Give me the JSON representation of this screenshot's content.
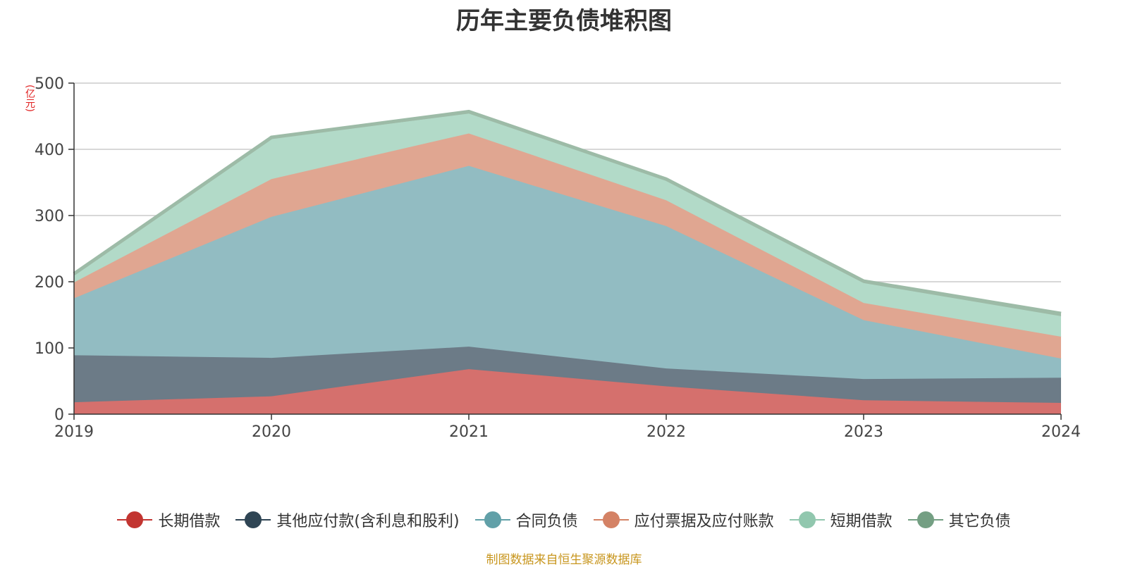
{
  "chart_data": {
    "type": "area",
    "stacked": true,
    "title": "历年主要负债堆积图",
    "unit_label": "(亿元)",
    "x": [
      "2019",
      "2020",
      "2021",
      "2022",
      "2023",
      "2024"
    ],
    "ylim": [
      0,
      500
    ],
    "yticks": [
      0,
      100,
      200,
      300,
      400,
      500
    ],
    "grid": true,
    "legend_position": "bottom",
    "series": [
      {
        "name": "长期借款",
        "color": "#c23531",
        "fill": "#d5706d",
        "values": [
          18,
          27,
          68,
          42,
          21,
          17
        ]
      },
      {
        "name": "其他应付款(含利息和股利)",
        "color": "#2f4554",
        "fill": "#6c7b87",
        "values": [
          71,
          58,
          34,
          27,
          32,
          38
        ]
      },
      {
        "name": "合同负债",
        "color": "#61a0a8",
        "fill": "#92bcc2",
        "values": [
          86,
          213,
          273,
          215,
          89,
          29
        ]
      },
      {
        "name": "应付票据及应付账款",
        "color": "#d48265",
        "fill": "#e0a691",
        "values": [
          24,
          57,
          49,
          39,
          26,
          33
        ]
      },
      {
        "name": "短期借款",
        "color": "#91c7ae",
        "fill": "#b2dac8",
        "values": [
          11,
          61,
          30,
          30,
          30,
          31
        ]
      },
      {
        "name": "其它负债",
        "color": "#749f83",
        "fill": "#9dbba7",
        "values": [
          2,
          2,
          3,
          2,
          3,
          4
        ]
      }
    ]
  },
  "footer": {
    "source": "制图数据来自恒生聚源数据库"
  }
}
